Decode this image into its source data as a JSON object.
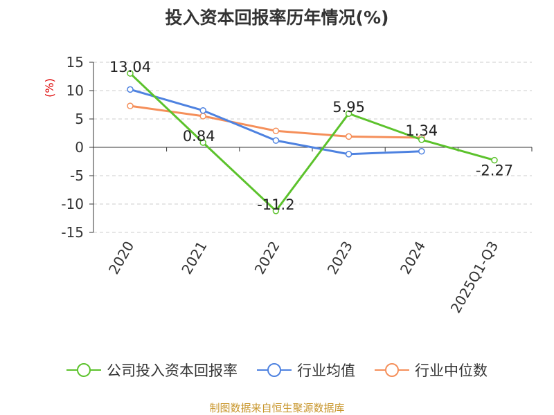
{
  "title": "投入资本回报率历年情况(%)",
  "source": "制图数据来自恒生聚源数据库",
  "colors": {
    "company": "#5cc22c",
    "industry_avg": "#4e82e0",
    "industry_median": "#f58f5a",
    "unit_label": "#dd0000",
    "grid": "#cccccc",
    "axis": "#333333"
  },
  "chart_data": {
    "type": "line",
    "title": "投入资本回报率历年情况(%)",
    "ylabel": "(%)",
    "xlabel": "",
    "ylim": [
      -15,
      15
    ],
    "yticks": [
      15,
      10,
      5,
      0,
      -5,
      -10,
      -15
    ],
    "categories": [
      "2020",
      "2021",
      "2022",
      "2023",
      "2024",
      "2025Q1-Q3"
    ],
    "grid": "horizontal dashed",
    "legend_position": "bottom",
    "series": [
      {
        "name": "公司投入资本回报率",
        "color": "#5cc22c",
        "values": [
          13.04,
          0.84,
          -11.2,
          5.95,
          1.34,
          -2.27
        ],
        "labels": [
          "13.04",
          "0.84",
          "-11.2",
          "5.95",
          "1.34",
          "-2.27"
        ]
      },
      {
        "name": "行业均值",
        "color": "#4e82e0",
        "values": [
          10.2,
          6.5,
          1.2,
          -1.2,
          -0.7,
          null
        ]
      },
      {
        "name": "行业中位数",
        "color": "#f58f5a",
        "values": [
          7.3,
          5.5,
          2.9,
          1.9,
          1.7,
          null
        ]
      }
    ]
  }
}
